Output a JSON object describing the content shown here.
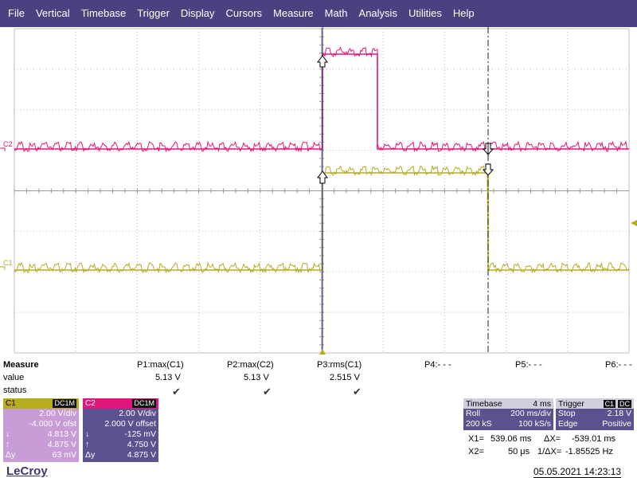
{
  "menu": [
    "File",
    "Vertical",
    "Timebase",
    "Trigger",
    "Display",
    "Cursors",
    "Measure",
    "Math",
    "Analysis",
    "Utilities",
    "Help"
  ],
  "colors": {
    "c1": "#b5ad1e",
    "c2": "#e8157a",
    "menubar": "#4a4280"
  },
  "traces": {
    "c1_label": "C1",
    "c2_label": "C2"
  },
  "measure": {
    "title": "Measure",
    "row_value": "value",
    "row_status": "status",
    "columns": [
      {
        "name": "P1:max(C1)",
        "value": "5.13 V",
        "status": "check"
      },
      {
        "name": "P2:max(C2)",
        "value": "5.13 V",
        "status": "check"
      },
      {
        "name": "P3:rms(C1)",
        "value": "2.515 V",
        "status": "check"
      },
      {
        "name": "P4:- - -",
        "value": "",
        "status": ""
      },
      {
        "name": "P5:- - -",
        "value": "",
        "status": ""
      },
      {
        "name": "P6:- - -",
        "value": "",
        "status": ""
      }
    ]
  },
  "c1": {
    "name": "C1",
    "coupling": "DC1M",
    "vdiv": "2.00 V/div",
    "offset": "-4.000 V ofst",
    "down_sym": "↓",
    "down": "4.813 V",
    "up_sym": "↑",
    "up": "4.875 V",
    "dy_label": "Δy",
    "dy": "63 mV"
  },
  "c2": {
    "name": "C2",
    "coupling": "DC1M",
    "vdiv": "2.00 V/div",
    "offset": "2.000 V offset",
    "down_sym": "↓",
    "down": "-125 mV",
    "up_sym": "↑",
    "up": "4.750 V",
    "dy_label": "Δy",
    "dy": "4.875 V"
  },
  "timebase": {
    "title": "Timebase",
    "delay": "4 ms",
    "mode": "Roll",
    "tdiv": "200 ms/div",
    "samples": "200 kS",
    "rate": "100 kS/s"
  },
  "trigger": {
    "title": "Trigger",
    "source": "C1",
    "coupling": "DC",
    "mode": "Stop",
    "level": "2.18 V",
    "type": "Edge",
    "slope": "Positive"
  },
  "cursors": {
    "x1_label": "X1=",
    "x1": "539.06 ms",
    "dx_label": "ΔX=",
    "dx": "-539.01 ms",
    "x2_label": "X2=",
    "x2": "50 μs",
    "inv_label": "1/ΔX=",
    "inv": "-1.85525 Hz"
  },
  "footer": {
    "brand": "LeCroy",
    "datetime": "05.05.2021 14:23:13"
  }
}
